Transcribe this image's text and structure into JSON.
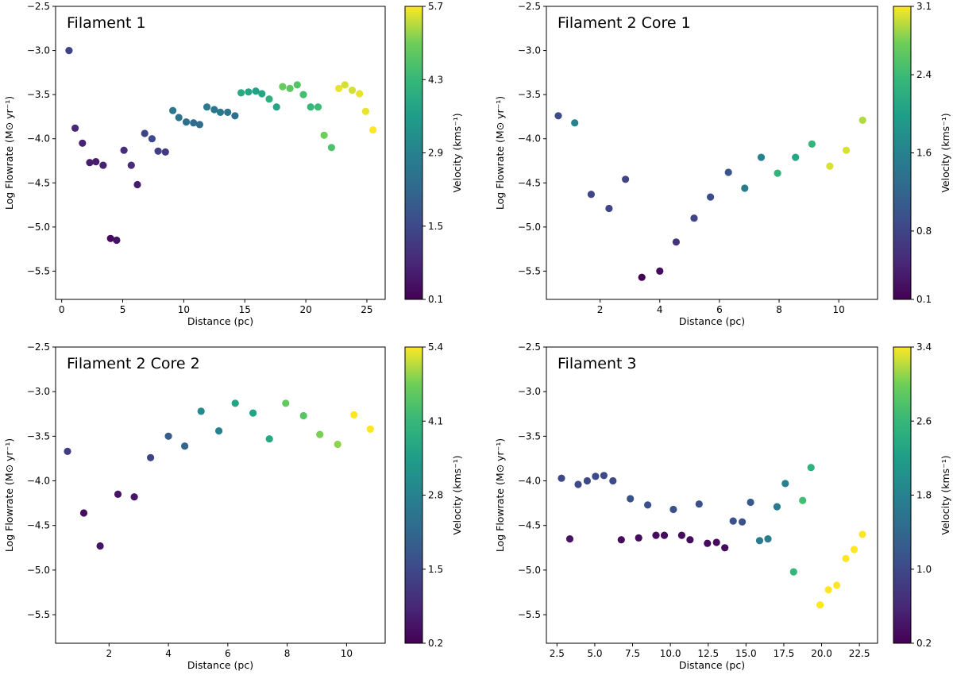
{
  "chart_data": [
    {
      "type": "scatter",
      "title": "Filament 1",
      "xlabel": "Distance (pc)",
      "ylabel": "Log Flowrate (M⊙ yr⁻¹)",
      "xlim": [
        -0.5,
        26.5
      ],
      "ylim": [
        -5.82,
        -2.5
      ],
      "xticks": [
        0,
        5,
        10,
        15,
        20,
        25
      ],
      "xtick_labels": [
        "0",
        "5",
        "10",
        "15",
        "20",
        "25"
      ],
      "yticks": [
        -2.5,
        -3.0,
        -3.5,
        -4.0,
        -4.5,
        -5.0,
        -5.5
      ],
      "ytick_labels": [
        "−2.5",
        "−3.0",
        "−3.5",
        "−4.0",
        "−4.5",
        "−5.0",
        "−5.5"
      ],
      "colorbar": {
        "label": "Velocity (kms⁻¹)",
        "min": 0.1,
        "max": 5.7,
        "ticks": [
          0.1,
          1.5,
          2.9,
          4.3,
          5.7
        ],
        "tick_labels": [
          "0.1",
          "1.5",
          "2.9",
          "4.3",
          "5.7"
        ]
      },
      "points": [
        {
          "x": 0.6,
          "y": -3.0,
          "v": 1.4
        },
        {
          "x": 1.1,
          "y": -3.88,
          "v": 0.8
        },
        {
          "x": 1.7,
          "y": -4.05,
          "v": 0.7
        },
        {
          "x": 2.3,
          "y": -4.27,
          "v": 0.6
        },
        {
          "x": 2.8,
          "y": -4.26,
          "v": 0.6
        },
        {
          "x": 3.4,
          "y": -4.3,
          "v": 0.7
        },
        {
          "x": 4.0,
          "y": -5.13,
          "v": 0.3
        },
        {
          "x": 4.5,
          "y": -5.15,
          "v": 0.4
        },
        {
          "x": 5.1,
          "y": -4.13,
          "v": 0.9
        },
        {
          "x": 5.7,
          "y": -4.3,
          "v": 0.9
        },
        {
          "x": 6.2,
          "y": -4.52,
          "v": 0.6
        },
        {
          "x": 6.8,
          "y": -3.94,
          "v": 1.4
        },
        {
          "x": 7.4,
          "y": -4.0,
          "v": 1.5
        },
        {
          "x": 7.9,
          "y": -4.14,
          "v": 1.3
        },
        {
          "x": 8.5,
          "y": -4.15,
          "v": 1.2
        },
        {
          "x": 9.1,
          "y": -3.68,
          "v": 2.6
        },
        {
          "x": 9.6,
          "y": -3.76,
          "v": 2.5
        },
        {
          "x": 10.2,
          "y": -3.81,
          "v": 2.4
        },
        {
          "x": 10.8,
          "y": -3.82,
          "v": 2.3
        },
        {
          "x": 11.3,
          "y": -3.84,
          "v": 2.3
        },
        {
          "x": 11.9,
          "y": -3.64,
          "v": 2.7
        },
        {
          "x": 12.5,
          "y": -3.67,
          "v": 2.6
        },
        {
          "x": 13.0,
          "y": -3.7,
          "v": 2.6
        },
        {
          "x": 13.6,
          "y": -3.7,
          "v": 2.5
        },
        {
          "x": 14.2,
          "y": -3.74,
          "v": 2.4
        },
        {
          "x": 14.7,
          "y": -3.48,
          "v": 3.9
        },
        {
          "x": 15.3,
          "y": -3.47,
          "v": 3.8
        },
        {
          "x": 15.9,
          "y": -3.46,
          "v": 3.7
        },
        {
          "x": 16.4,
          "y": -3.49,
          "v": 3.8
        },
        {
          "x": 17.0,
          "y": -3.55,
          "v": 4.1
        },
        {
          "x": 17.6,
          "y": -3.64,
          "v": 3.8
        },
        {
          "x": 18.1,
          "y": -3.41,
          "v": 4.9
        },
        {
          "x": 18.7,
          "y": -3.43,
          "v": 4.8
        },
        {
          "x": 19.3,
          "y": -3.39,
          "v": 4.7
        },
        {
          "x": 19.8,
          "y": -3.5,
          "v": 4.5
        },
        {
          "x": 20.4,
          "y": -3.64,
          "v": 4.3
        },
        {
          "x": 21.0,
          "y": -3.64,
          "v": 4.4
        },
        {
          "x": 21.5,
          "y": -3.96,
          "v": 5.0
        },
        {
          "x": 22.1,
          "y": -4.1,
          "v": 4.6
        },
        {
          "x": 22.7,
          "y": -3.43,
          "v": 5.6
        },
        {
          "x": 23.2,
          "y": -3.39,
          "v": 5.5
        },
        {
          "x": 23.8,
          "y": -3.45,
          "v": 5.5
        },
        {
          "x": 24.4,
          "y": -3.49,
          "v": 5.6
        },
        {
          "x": 24.9,
          "y": -3.69,
          "v": 5.6
        },
        {
          "x": 25.5,
          "y": -3.9,
          "v": 5.7
        }
      ]
    },
    {
      "type": "scatter",
      "title": "Filament 2 Core 1",
      "xlabel": "Distance (pc)",
      "ylabel": "Log Flowrate (M⊙ yr⁻¹)",
      "xlim": [
        0.2,
        11.3
      ],
      "ylim": [
        -5.82,
        -2.5
      ],
      "xticks": [
        2,
        4,
        6,
        8,
        10
      ],
      "xtick_labels": [
        "2",
        "4",
        "6",
        "8",
        "10"
      ],
      "yticks": [
        -2.5,
        -3.0,
        -3.5,
        -4.0,
        -4.5,
        -5.0,
        -5.5
      ],
      "ytick_labels": [
        "−2.5",
        "−3.0",
        "−3.5",
        "−4.0",
        "−4.5",
        "−5.0",
        "−5.5"
      ],
      "colorbar": {
        "label": "Velocity (kms⁻¹)",
        "min": 0.1,
        "max": 3.1,
        "ticks": [
          0.1,
          0.8,
          1.6,
          2.4,
          3.1
        ],
        "tick_labels": [
          "0.1",
          "0.8",
          "1.6",
          "2.4",
          "3.1"
        ]
      },
      "points": [
        {
          "x": 0.6,
          "y": -3.74,
          "v": 0.9
        },
        {
          "x": 1.15,
          "y": -3.82,
          "v": 1.6
        },
        {
          "x": 1.7,
          "y": -4.63,
          "v": 0.8
        },
        {
          "x": 2.3,
          "y": -4.79,
          "v": 0.8
        },
        {
          "x": 2.85,
          "y": -4.46,
          "v": 0.8
        },
        {
          "x": 3.4,
          "y": -5.57,
          "v": 0.1
        },
        {
          "x": 4.0,
          "y": -5.5,
          "v": 0.2
        },
        {
          "x": 4.55,
          "y": -5.17,
          "v": 0.6
        },
        {
          "x": 5.15,
          "y": -4.9,
          "v": 0.8
        },
        {
          "x": 5.7,
          "y": -4.66,
          "v": 0.9
        },
        {
          "x": 6.3,
          "y": -4.38,
          "v": 1.0
        },
        {
          "x": 6.85,
          "y": -4.56,
          "v": 1.5
        },
        {
          "x": 7.4,
          "y": -4.21,
          "v": 1.6
        },
        {
          "x": 7.95,
          "y": -4.39,
          "v": 2.3
        },
        {
          "x": 8.55,
          "y": -4.21,
          "v": 2.1
        },
        {
          "x": 9.1,
          "y": -4.06,
          "v": 2.3
        },
        {
          "x": 9.7,
          "y": -4.31,
          "v": 3.0
        },
        {
          "x": 10.25,
          "y": -4.13,
          "v": 3.0
        },
        {
          "x": 10.8,
          "y": -3.79,
          "v": 2.9
        }
      ]
    },
    {
      "type": "scatter",
      "title": "Filament 2 Core 2",
      "xlabel": "Distance (pc)",
      "ylabel": "Log Flowrate (M⊙ yr⁻¹)",
      "xlim": [
        0.2,
        11.3
      ],
      "ylim": [
        -5.82,
        -2.5
      ],
      "xticks": [
        2,
        4,
        6,
        8,
        10
      ],
      "xtick_labels": [
        "2",
        "4",
        "6",
        "8",
        "10"
      ],
      "yticks": [
        -2.5,
        -3.0,
        -3.5,
        -4.0,
        -4.5,
        -5.0,
        -5.5
      ],
      "ytick_labels": [
        "−2.5",
        "−3.0",
        "−3.5",
        "−4.0",
        "−4.5",
        "−5.0",
        "−5.5"
      ],
      "colorbar": {
        "label": "Velocity (kms⁻¹)",
        "min": 0.2,
        "max": 5.4,
        "ticks": [
          0.2,
          1.5,
          2.8,
          4.1,
          5.4
        ],
        "tick_labels": [
          "0.2",
          "1.5",
          "2.8",
          "4.1",
          "5.4"
        ]
      },
      "points": [
        {
          "x": 0.6,
          "y": -3.67,
          "v": 1.3
        },
        {
          "x": 1.15,
          "y": -4.36,
          "v": 0.4
        },
        {
          "x": 1.7,
          "y": -4.73,
          "v": 0.5
        },
        {
          "x": 2.3,
          "y": -4.15,
          "v": 0.5
        },
        {
          "x": 2.85,
          "y": -4.18,
          "v": 0.5
        },
        {
          "x": 3.4,
          "y": -3.74,
          "v": 1.4
        },
        {
          "x": 4.0,
          "y": -3.5,
          "v": 1.9
        },
        {
          "x": 4.55,
          "y": -3.61,
          "v": 2.1
        },
        {
          "x": 5.1,
          "y": -3.22,
          "v": 3.0
        },
        {
          "x": 5.7,
          "y": -3.44,
          "v": 2.8
        },
        {
          "x": 6.25,
          "y": -3.13,
          "v": 3.6
        },
        {
          "x": 6.85,
          "y": -3.24,
          "v": 3.6
        },
        {
          "x": 7.4,
          "y": -3.53,
          "v": 3.7
        },
        {
          "x": 7.95,
          "y": -3.13,
          "v": 4.6
        },
        {
          "x": 8.55,
          "y": -3.27,
          "v": 4.5
        },
        {
          "x": 9.1,
          "y": -3.48,
          "v": 4.8
        },
        {
          "x": 9.7,
          "y": -3.59,
          "v": 4.9
        },
        {
          "x": 10.25,
          "y": -3.26,
          "v": 5.4
        },
        {
          "x": 10.8,
          "y": -3.42,
          "v": 5.4
        }
      ]
    },
    {
      "type": "scatter",
      "title": "Filament 3",
      "xlabel": "Distance (pc)",
      "ylabel": "Log Flowrate (M⊙ yr⁻¹)",
      "xlim": [
        1.8,
        23.7
      ],
      "ylim": [
        -5.82,
        -2.5
      ],
      "xticks": [
        2.5,
        5.0,
        7.5,
        10.0,
        12.5,
        15.0,
        17.5,
        20.0,
        22.5
      ],
      "xtick_labels": [
        "2.5",
        "5.0",
        "7.5",
        "10.0",
        "12.5",
        "15.0",
        "17.5",
        "20.0",
        "22.5"
      ],
      "yticks": [
        -2.5,
        -3.0,
        -3.5,
        -4.0,
        -4.5,
        -5.0,
        -5.5
      ],
      "ytick_labels": [
        "−2.5",
        "−3.0",
        "−3.5",
        "−4.0",
        "−4.5",
        "−5.0",
        "−5.5"
      ],
      "colorbar": {
        "label": "Velocity (kms⁻¹)",
        "min": 0.2,
        "max": 3.4,
        "ticks": [
          0.2,
          1.0,
          1.8,
          2.6,
          3.4
        ],
        "tick_labels": [
          "0.2",
          "1.0",
          "1.8",
          "2.6",
          "3.4"
        ]
      },
      "points": [
        {
          "x": 2.8,
          "y": -3.97,
          "v": 1.0
        },
        {
          "x": 3.35,
          "y": -4.65,
          "v": 0.4
        },
        {
          "x": 3.9,
          "y": -4.04,
          "v": 1.0
        },
        {
          "x": 4.5,
          "y": -4.0,
          "v": 1.0
        },
        {
          "x": 5.05,
          "y": -3.95,
          "v": 1.0
        },
        {
          "x": 5.6,
          "y": -3.94,
          "v": 1.0
        },
        {
          "x": 6.2,
          "y": -4.0,
          "v": 1.0
        },
        {
          "x": 6.75,
          "y": -4.66,
          "v": 0.3
        },
        {
          "x": 7.35,
          "y": -4.2,
          "v": 1.1
        },
        {
          "x": 7.9,
          "y": -4.64,
          "v": 0.3
        },
        {
          "x": 8.5,
          "y": -4.27,
          "v": 1.1
        },
        {
          "x": 9.05,
          "y": -4.61,
          "v": 0.3
        },
        {
          "x": 9.6,
          "y": -4.61,
          "v": 0.3
        },
        {
          "x": 10.2,
          "y": -4.32,
          "v": 1.1
        },
        {
          "x": 10.75,
          "y": -4.61,
          "v": 0.3
        },
        {
          "x": 11.3,
          "y": -4.66,
          "v": 0.3
        },
        {
          "x": 11.9,
          "y": -4.26,
          "v": 1.1
        },
        {
          "x": 12.45,
          "y": -4.7,
          "v": 0.3
        },
        {
          "x": 13.05,
          "y": -4.69,
          "v": 0.3
        },
        {
          "x": 13.6,
          "y": -4.75,
          "v": 0.3
        },
        {
          "x": 14.15,
          "y": -4.45,
          "v": 1.1
        },
        {
          "x": 14.75,
          "y": -4.46,
          "v": 1.1
        },
        {
          "x": 15.3,
          "y": -4.24,
          "v": 1.2
        },
        {
          "x": 15.9,
          "y": -4.67,
          "v": 1.7
        },
        {
          "x": 16.45,
          "y": -4.65,
          "v": 1.7
        },
        {
          "x": 17.05,
          "y": -4.29,
          "v": 1.7
        },
        {
          "x": 17.6,
          "y": -4.03,
          "v": 1.8
        },
        {
          "x": 18.15,
          "y": -5.02,
          "v": 2.6
        },
        {
          "x": 18.75,
          "y": -4.22,
          "v": 2.7
        },
        {
          "x": 19.3,
          "y": -3.85,
          "v": 2.5
        },
        {
          "x": 19.9,
          "y": -5.39,
          "v": 3.4
        },
        {
          "x": 20.45,
          "y": -5.22,
          "v": 3.4
        },
        {
          "x": 21.0,
          "y": -5.17,
          "v": 3.4
        },
        {
          "x": 21.6,
          "y": -4.87,
          "v": 3.4
        },
        {
          "x": 22.15,
          "y": -4.77,
          "v": 3.4
        },
        {
          "x": 22.7,
          "y": -4.6,
          "v": 3.4
        }
      ]
    }
  ]
}
